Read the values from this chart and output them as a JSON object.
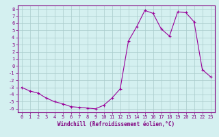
{
  "x": [
    0,
    1,
    2,
    3,
    4,
    5,
    6,
    7,
    8,
    9,
    10,
    11,
    12,
    13,
    14,
    15,
    16,
    17,
    18,
    19,
    20,
    21,
    22,
    23
  ],
  "y": [
    -3.0,
    -3.5,
    -3.8,
    -4.5,
    -5.0,
    -5.3,
    -5.7,
    -5.8,
    -5.9,
    -6.0,
    -5.5,
    -4.5,
    -3.2,
    3.5,
    5.5,
    7.8,
    7.4,
    5.2,
    4.2,
    7.6,
    7.5,
    6.2,
    -0.5,
    -1.5
  ],
  "line_color": "#990099",
  "marker": "+",
  "marker_size": 3,
  "bg_color": "#d4f0f0",
  "grid_color": "#aacccc",
  "xlabel": "Windchill (Refroidissement éolien,°C)",
  "xlim": [
    -0.5,
    23.5
  ],
  "ylim": [
    -6.5,
    8.5
  ],
  "xtick_labels": [
    "0",
    "1",
    "2",
    "3",
    "4",
    "5",
    "6",
    "7",
    "8",
    "9",
    "10",
    "11",
    "12",
    "13",
    "14",
    "15",
    "16",
    "17",
    "18",
    "19",
    "20",
    "21",
    "22",
    "23"
  ],
  "ytick_values": [
    -6,
    -5,
    -4,
    -3,
    -2,
    -1,
    0,
    1,
    2,
    3,
    4,
    5,
    6,
    7,
    8
  ],
  "font_color": "#800080",
  "spine_color": "#800080",
  "xlabel_fontsize": 5.5,
  "tick_fontsize": 5.0
}
